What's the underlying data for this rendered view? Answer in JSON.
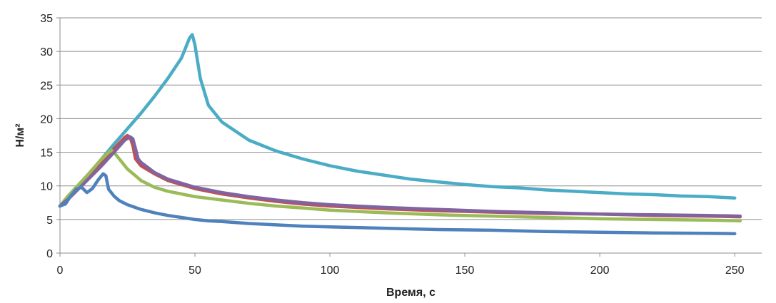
{
  "chart_data": {
    "type": "line",
    "title": "",
    "xlabel": "Время, с",
    "ylabel": "Н/м²",
    "xlim": [
      0,
      260
    ],
    "ylim": [
      0,
      35
    ],
    "x_ticks": [
      0,
      50,
      100,
      150,
      200,
      250
    ],
    "y_ticks": [
      0,
      5,
      10,
      15,
      20,
      25,
      30,
      35
    ],
    "grid": "horizontal",
    "legend": "none",
    "series": [
      {
        "color": "#4BACC6",
        "points": [
          [
            0,
            7
          ],
          [
            2,
            8
          ],
          [
            5,
            9.3
          ],
          [
            10,
            11.5
          ],
          [
            15,
            13.8
          ],
          [
            20,
            16.2
          ],
          [
            25,
            18.5
          ],
          [
            30,
            20.8
          ],
          [
            35,
            23.3
          ],
          [
            40,
            26
          ],
          [
            45,
            29
          ],
          [
            48,
            32
          ],
          [
            49,
            32.5
          ],
          [
            50,
            31
          ],
          [
            52,
            26
          ],
          [
            55,
            22
          ],
          [
            60,
            19.5
          ],
          [
            70,
            16.8
          ],
          [
            80,
            15.2
          ],
          [
            90,
            14
          ],
          [
            100,
            13
          ],
          [
            110,
            12.2
          ],
          [
            120,
            11.6
          ],
          [
            130,
            11
          ],
          [
            140,
            10.6
          ],
          [
            150,
            10.2
          ],
          [
            160,
            9.9
          ],
          [
            170,
            9.7
          ],
          [
            180,
            9.4
          ],
          [
            190,
            9.2
          ],
          [
            200,
            9
          ],
          [
            210,
            8.8
          ],
          [
            220,
            8.7
          ],
          [
            230,
            8.5
          ],
          [
            240,
            8.4
          ],
          [
            250,
            8.2
          ]
        ]
      },
      {
        "color": "#C0504D",
        "points": [
          [
            0,
            7
          ],
          [
            3,
            8.2
          ],
          [
            6,
            9.5
          ],
          [
            10,
            11
          ],
          [
            15,
            13.2
          ],
          [
            20,
            15.5
          ],
          [
            24,
            17.2
          ],
          [
            25,
            17.5
          ],
          [
            26,
            17.2
          ],
          [
            27,
            16
          ],
          [
            28,
            14
          ],
          [
            30,
            13
          ],
          [
            35,
            11.8
          ],
          [
            40,
            10.8
          ],
          [
            50,
            9.6
          ],
          [
            60,
            8.8
          ],
          [
            70,
            8.2
          ],
          [
            80,
            7.7
          ],
          [
            90,
            7.3
          ],
          [
            100,
            7
          ],
          [
            120,
            6.6
          ],
          [
            140,
            6.3
          ],
          [
            160,
            6.1
          ],
          [
            180,
            5.9
          ],
          [
            200,
            5.8
          ],
          [
            220,
            5.6
          ],
          [
            240,
            5.5
          ],
          [
            252,
            5.4
          ]
        ]
      },
      {
        "color": "#9BBB59",
        "points": [
          [
            0,
            7
          ],
          [
            3,
            8.5
          ],
          [
            6,
            9.8
          ],
          [
            10,
            11.5
          ],
          [
            15,
            13.8
          ],
          [
            18,
            15
          ],
          [
            19,
            15.3
          ],
          [
            20,
            15
          ],
          [
            22,
            14
          ],
          [
            25,
            12.5
          ],
          [
            28,
            11.5
          ],
          [
            30,
            10.8
          ],
          [
            35,
            9.8
          ],
          [
            40,
            9.2
          ],
          [
            50,
            8.4
          ],
          [
            60,
            7.9
          ],
          [
            70,
            7.4
          ],
          [
            80,
            7
          ],
          [
            90,
            6.7
          ],
          [
            100,
            6.4
          ],
          [
            120,
            6
          ],
          [
            140,
            5.7
          ],
          [
            160,
            5.5
          ],
          [
            180,
            5.3
          ],
          [
            200,
            5.1
          ],
          [
            220,
            5
          ],
          [
            240,
            4.9
          ],
          [
            252,
            4.8
          ]
        ]
      },
      {
        "color": "#8064A2",
        "points": [
          [
            0,
            7
          ],
          [
            3,
            8
          ],
          [
            6,
            9.2
          ],
          [
            10,
            10.8
          ],
          [
            15,
            12.8
          ],
          [
            20,
            15
          ],
          [
            24,
            16.8
          ],
          [
            26,
            17.3
          ],
          [
            27,
            17
          ],
          [
            28,
            15.5
          ],
          [
            29,
            14
          ],
          [
            30,
            13.5
          ],
          [
            35,
            12
          ],
          [
            40,
            11
          ],
          [
            50,
            9.8
          ],
          [
            60,
            9
          ],
          [
            70,
            8.4
          ],
          [
            80,
            7.9
          ],
          [
            90,
            7.5
          ],
          [
            100,
            7.2
          ],
          [
            120,
            6.8
          ],
          [
            140,
            6.5
          ],
          [
            160,
            6.2
          ],
          [
            180,
            6
          ],
          [
            200,
            5.8
          ],
          [
            220,
            5.7
          ],
          [
            240,
            5.6
          ],
          [
            252,
            5.5
          ]
        ]
      },
      {
        "color": "#4F81BD",
        "points": [
          [
            0,
            7
          ],
          [
            2,
            7.3
          ],
          [
            4,
            8.5
          ],
          [
            6,
            9.5
          ],
          [
            8,
            9.8
          ],
          [
            10,
            9
          ],
          [
            12,
            9.6
          ],
          [
            14,
            10.8
          ],
          [
            16,
            11.8
          ],
          [
            17,
            11.5
          ],
          [
            18,
            9.5
          ],
          [
            20,
            8.5
          ],
          [
            22,
            7.8
          ],
          [
            25,
            7.2
          ],
          [
            30,
            6.5
          ],
          [
            35,
            6
          ],
          [
            40,
            5.6
          ],
          [
            45,
            5.3
          ],
          [
            50,
            5
          ],
          [
            55,
            4.8
          ],
          [
            60,
            4.7
          ],
          [
            70,
            4.4
          ],
          [
            80,
            4.2
          ],
          [
            90,
            4
          ],
          [
            100,
            3.9
          ],
          [
            120,
            3.7
          ],
          [
            140,
            3.5
          ],
          [
            160,
            3.4
          ],
          [
            180,
            3.2
          ],
          [
            200,
            3.1
          ],
          [
            220,
            3
          ],
          [
            240,
            2.95
          ],
          [
            250,
            2.9
          ]
        ]
      }
    ]
  }
}
